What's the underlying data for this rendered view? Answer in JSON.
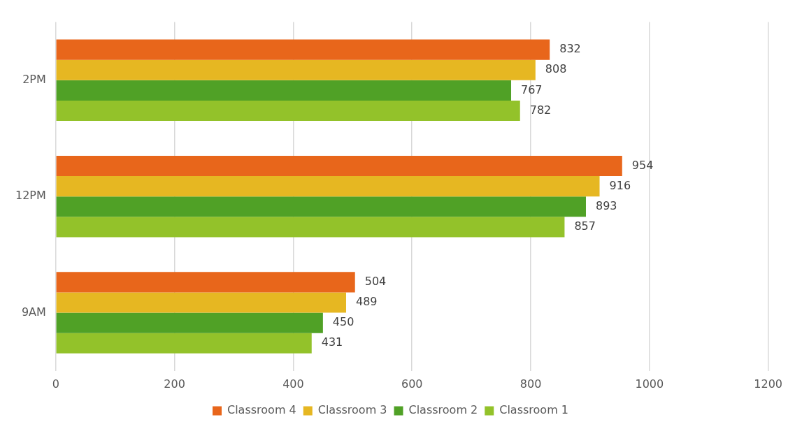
{
  "chart_data": {
    "type": "bar",
    "orientation": "horizontal",
    "categories": [
      "2PM",
      "12PM",
      "9AM"
    ],
    "series": [
      {
        "name": "Classroom 4",
        "color": "#e8661b",
        "values": [
          832,
          954,
          504
        ]
      },
      {
        "name": "Classroom 3",
        "color": "#e6b722",
        "values": [
          808,
          916,
          489
        ]
      },
      {
        "name": "Classroom 2",
        "color": "#50a126",
        "values": [
          767,
          893,
          450
        ]
      },
      {
        "name": "Classroom 1",
        "color": "#93c22a",
        "values": [
          782,
          857,
          431
        ]
      }
    ],
    "xlim": [
      0,
      1200
    ],
    "xticks": [
      0,
      200,
      400,
      600,
      800,
      1000,
      1200
    ],
    "grid": "x",
    "legend": "bottom",
    "data_labels": true
  }
}
